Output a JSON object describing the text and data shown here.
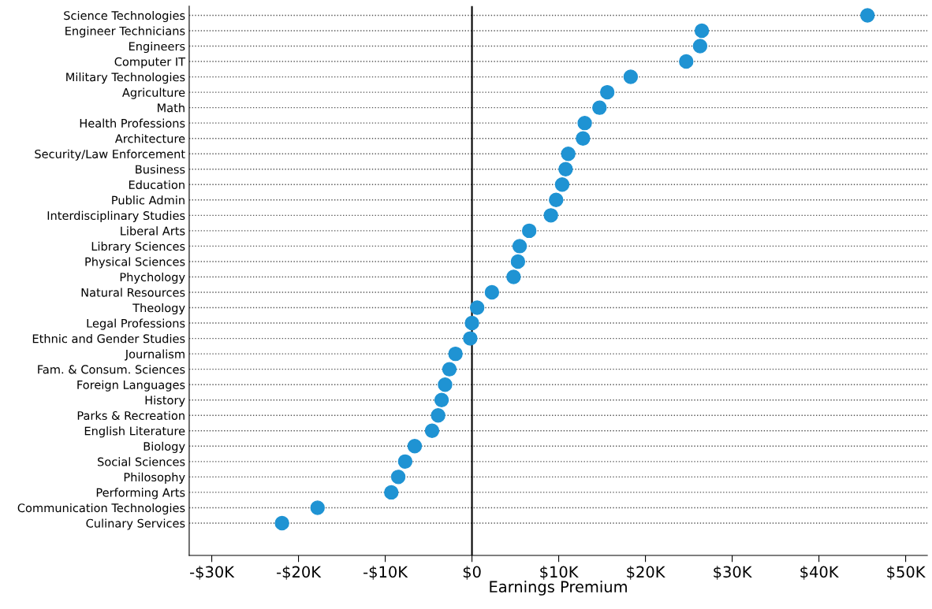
{
  "chart_data": {
    "type": "scatter",
    "orientation": "horizontal",
    "xlabel": "Earnings Premium",
    "categories": [
      "Science Technologies",
      "Engineer Technicians",
      "Engineers",
      "Computer IT",
      "Military Technologies",
      "Agriculture",
      "Math",
      "Health Professions",
      "Architecture",
      "Security/Law Enforcement",
      "Business",
      "Education",
      "Public Admin",
      "Interdisciplinary Studies",
      "Liberal Arts",
      "Library Sciences",
      "Physical Sciences",
      "Phychology",
      "Natural Resources",
      "Theology",
      "Legal Professions",
      "Ethnic and Gender Studies",
      "Journalism",
      "Fam. & Consum. Sciences",
      "Foreign Languages",
      "History",
      "Parks & Recreation",
      "English Literature",
      "Biology",
      "Social Sciences",
      "Philosophy",
      "Performing Arts",
      "Communication Technologies",
      "Culinary Services"
    ],
    "series": [
      {
        "color": "#1f93d3",
        "values": [
          45600,
          26500,
          26300,
          24700,
          18300,
          15600,
          14700,
          13000,
          12800,
          11100,
          10800,
          10400,
          9700,
          9100,
          6600,
          5500,
          5300,
          4800,
          2300,
          600,
          0,
          -200,
          -1900,
          -2600,
          -3100,
          -3500,
          -3900,
          -4600,
          -6600,
          -7700,
          -8500,
          -9300,
          -17800,
          -21900
        ]
      }
    ],
    "xlim": [
      -32600,
      52500
    ],
    "xticks": [
      {
        "value": -30000,
        "label": "-$30K"
      },
      {
        "value": -20000,
        "label": "-$20K"
      },
      {
        "value": -10000,
        "label": "-$10K"
      },
      {
        "value": 0,
        "label": "$0"
      },
      {
        "value": 10000,
        "label": "$10K"
      },
      {
        "value": 20000,
        "label": "$20K"
      },
      {
        "value": 30000,
        "label": "$30K"
      },
      {
        "value": 40000,
        "label": "$40K"
      },
      {
        "value": 50000,
        "label": "$50K"
      }
    ],
    "grid": "y",
    "line_style": "dotted",
    "marker": "circle",
    "legend": false,
    "ref_lines": [
      {
        "axis": "x",
        "value": 0,
        "color": "#000000",
        "line_style": "solid"
      }
    ]
  }
}
